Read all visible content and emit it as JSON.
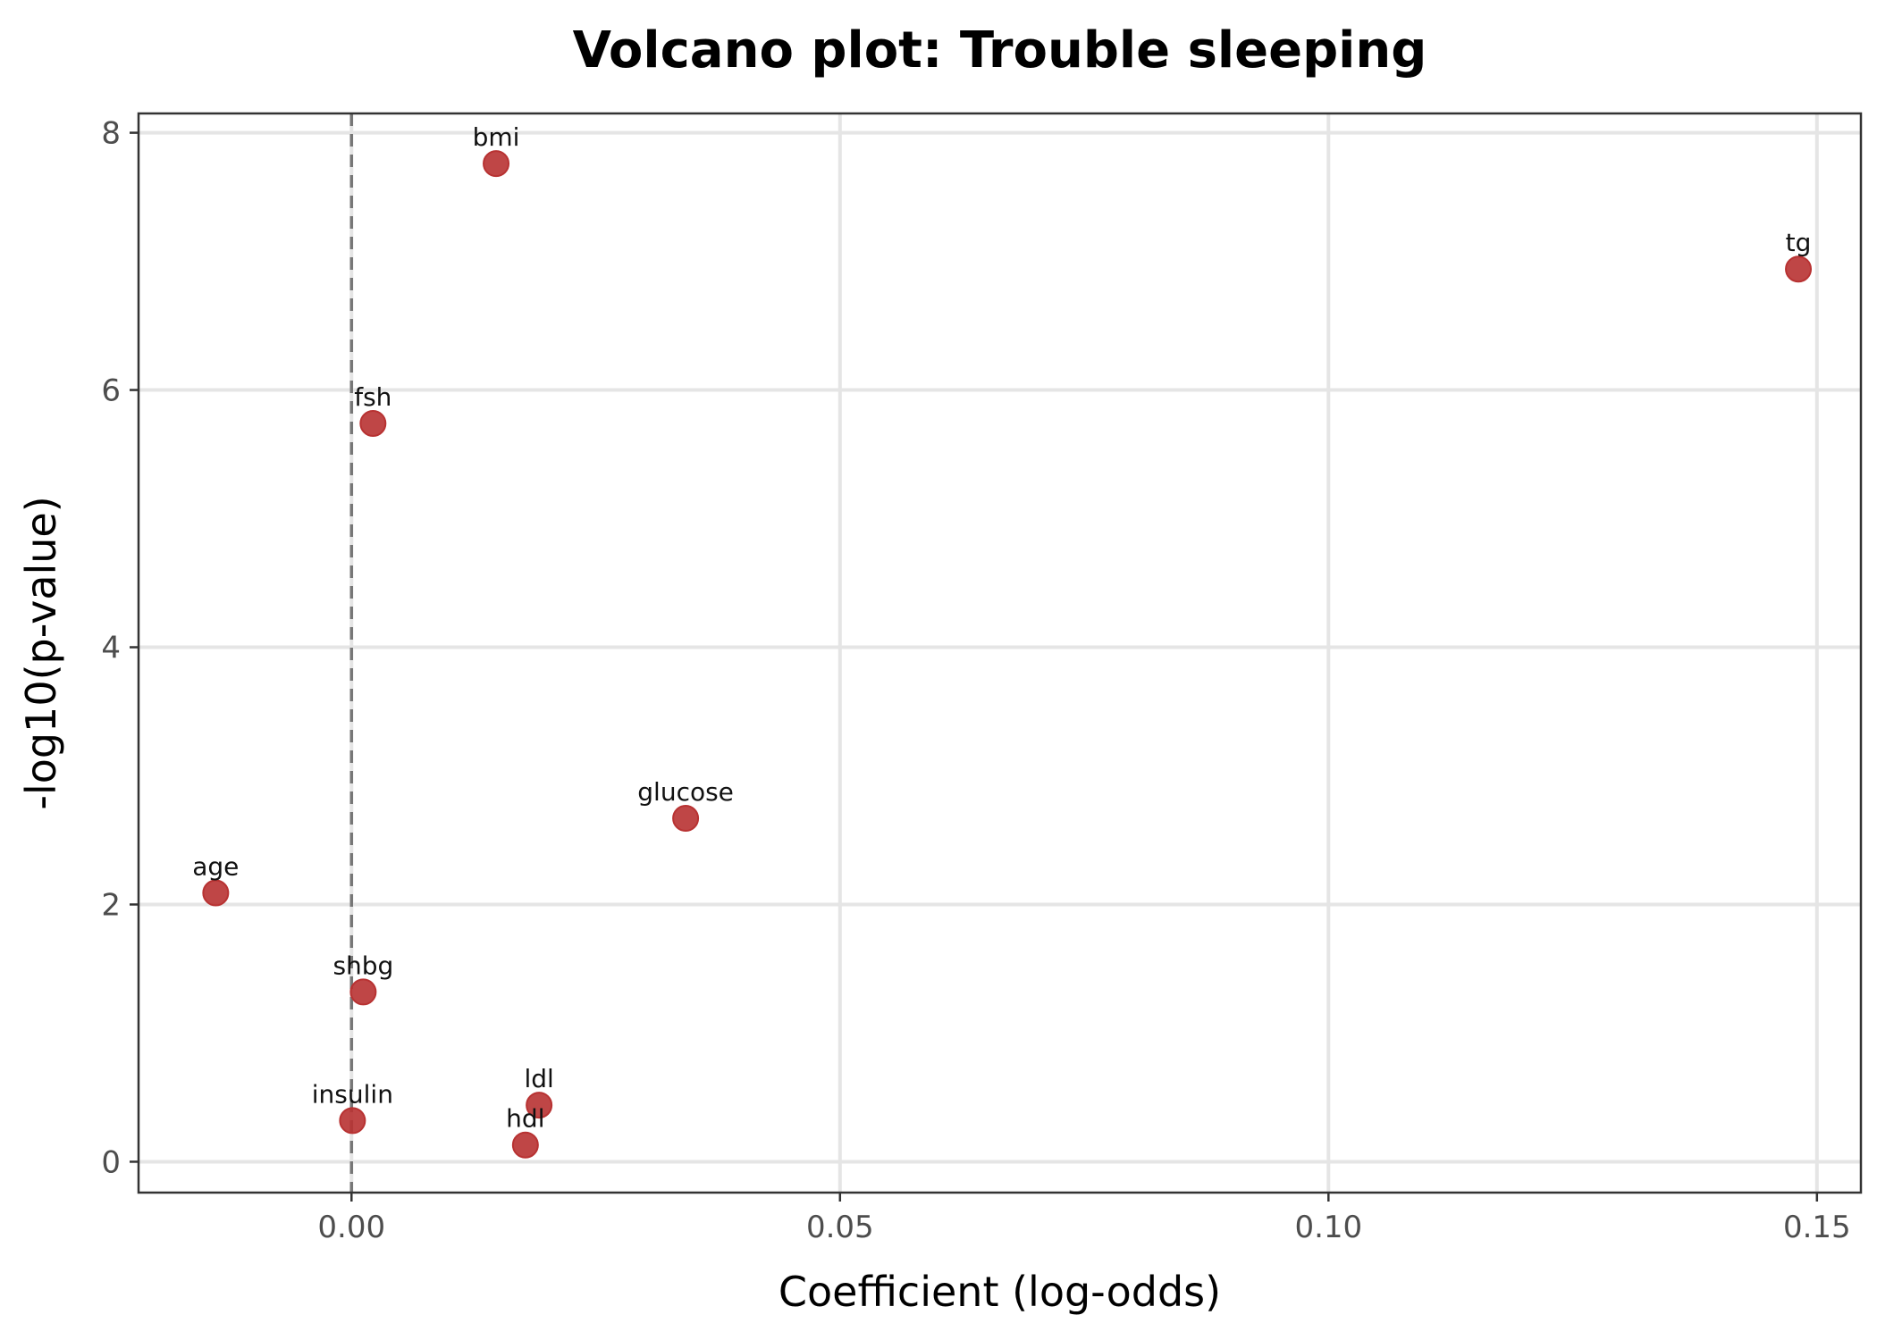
{
  "chart_data": {
    "type": "scatter",
    "title": "Volcano plot: Trouble sleeping",
    "xlabel": "Coefficient (log-odds)",
    "ylabel": "-log10(p-value)",
    "xlim": [
      -0.0218,
      0.1545
    ],
    "ylim": [
      -0.24,
      8.15
    ],
    "x_ticks": [
      0.0,
      0.05,
      0.1,
      0.15
    ],
    "x_tick_labels": [
      "0.00",
      "0.05",
      "0.10",
      "0.15"
    ],
    "y_ticks": [
      0,
      2,
      4,
      6,
      8
    ],
    "y_tick_labels": [
      "0",
      "2",
      "4",
      "6",
      "8"
    ],
    "reference_line_x": 0,
    "grid": true,
    "point_color": "#b83232",
    "points": [
      {
        "label": "bmi",
        "x": 0.0148,
        "y": 7.76
      },
      {
        "label": "tg",
        "x": 0.1481,
        "y": 6.94
      },
      {
        "label": "fsh",
        "x": 0.0022,
        "y": 5.74
      },
      {
        "label": "glucose",
        "x": 0.0342,
        "y": 2.67
      },
      {
        "label": "age",
        "x": -0.0139,
        "y": 2.09
      },
      {
        "label": "shbg",
        "x": 0.0012,
        "y": 1.32
      },
      {
        "label": "ldl",
        "x": 0.0192,
        "y": 0.44
      },
      {
        "label": "insulin",
        "x": 0.0001,
        "y": 0.32
      },
      {
        "label": "hdl",
        "x": 0.0178,
        "y": 0.13
      }
    ]
  }
}
